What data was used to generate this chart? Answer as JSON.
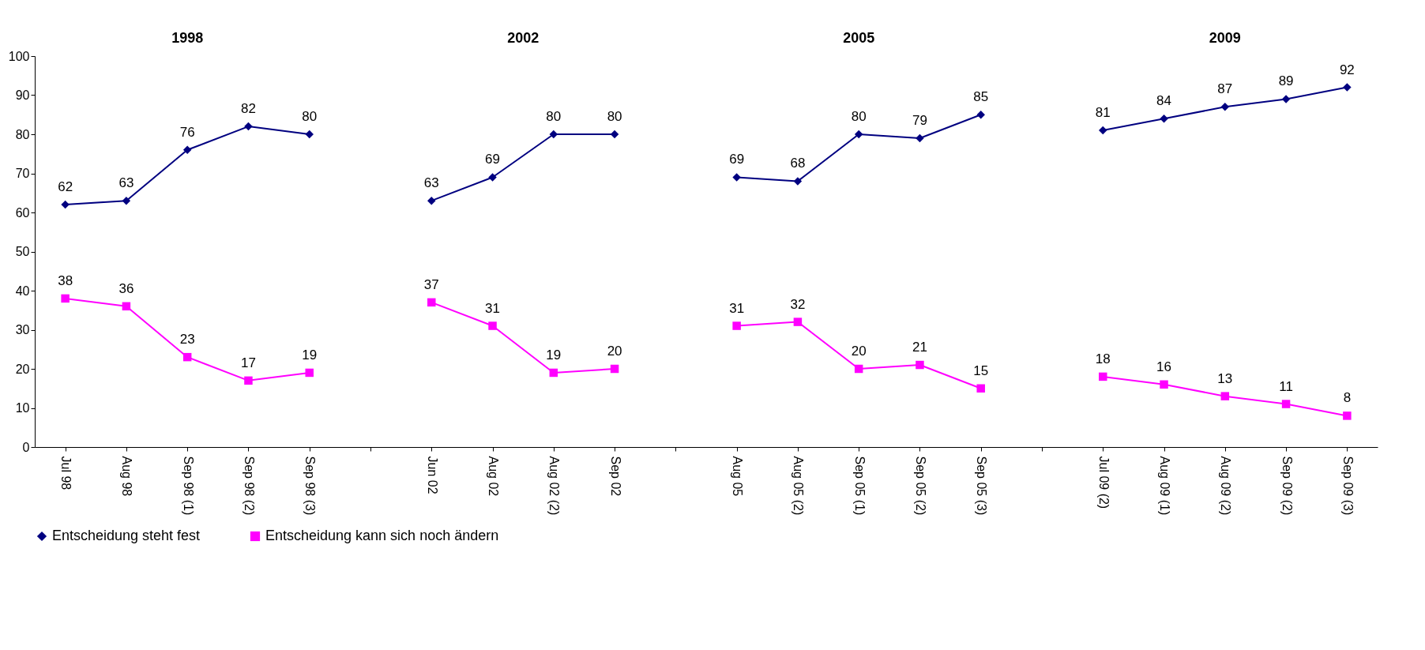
{
  "chart_data": {
    "type": "line",
    "categories": [
      "Jul 98",
      "Aug 98",
      "Sep 98 (1)",
      "Sep 98 (2)",
      "Sep 98 (3)",
      null,
      "Jun 02",
      "Aug 02",
      "Aug 02 (2)",
      "Sep 02",
      null,
      "Aug 05",
      "Aug 05 (2)",
      "Sep 05 (1)",
      "Sep 05 (2)",
      "Sep 05 (3)",
      null,
      "Jul 09 (2)",
      "Aug 09 (1)",
      "Aug 09 (2)",
      "Sep 09 (2)",
      "Sep 09 (3)"
    ],
    "series": [
      {
        "name": "Entscheidung steht fest",
        "color": "#000080",
        "marker": "diamond",
        "values": [
          62,
          63,
          76,
          82,
          80,
          null,
          63,
          69,
          80,
          80,
          null,
          69,
          68,
          80,
          79,
          85,
          null,
          81,
          84,
          87,
          89,
          92
        ]
      },
      {
        "name": "Entscheidung kann sich noch ändern",
        "color": "#ff00ff",
        "marker": "square",
        "values": [
          38,
          36,
          23,
          17,
          19,
          null,
          37,
          31,
          19,
          20,
          null,
          31,
          32,
          20,
          21,
          15,
          null,
          18,
          16,
          13,
          11,
          8
        ]
      }
    ],
    "annotations": [
      "1998",
      "2002",
      "2005",
      "2009"
    ],
    "ylim": [
      0,
      100
    ],
    "yticks": [
      0,
      10,
      20,
      30,
      40,
      50,
      60,
      70,
      80,
      90,
      100
    ],
    "grid": false,
    "legend": "bottom",
    "data_labels": true,
    "line_style": "solid"
  }
}
